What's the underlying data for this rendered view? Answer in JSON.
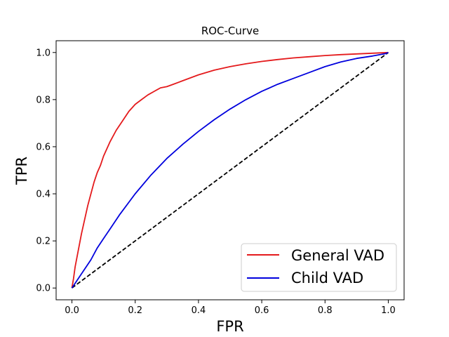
{
  "chart_data": {
    "type": "line",
    "title": "ROC-Curve",
    "xlabel": "FPR",
    "ylabel": "TPR",
    "xlim": [
      -0.05,
      1.05
    ],
    "ylim": [
      -0.05,
      1.05
    ],
    "xticks": [
      "0.0",
      "0.2",
      "0.4",
      "0.6",
      "0.8",
      "1.0"
    ],
    "yticks": [
      "0.0",
      "0.2",
      "0.4",
      "0.6",
      "0.8",
      "1.0"
    ],
    "xtick_values": [
      0.0,
      0.2,
      0.4,
      0.6,
      0.8,
      1.0
    ],
    "ytick_values": [
      0.0,
      0.2,
      0.4,
      0.6,
      0.8,
      1.0
    ],
    "grid": false,
    "legend_position": "bottom-right",
    "series": [
      {
        "name": "General VAD",
        "color": "#e41a1c",
        "x": [
          0.0,
          0.005,
          0.01,
          0.02,
          0.03,
          0.04,
          0.05,
          0.06,
          0.07,
          0.08,
          0.09,
          0.1,
          0.12,
          0.14,
          0.16,
          0.18,
          0.2,
          0.22,
          0.24,
          0.26,
          0.28,
          0.3,
          0.32,
          0.35,
          0.4,
          0.45,
          0.5,
          0.55,
          0.6,
          0.65,
          0.7,
          0.75,
          0.8,
          0.85,
          0.9,
          0.95,
          1.0
        ],
        "y": [
          0.0,
          0.04,
          0.09,
          0.16,
          0.23,
          0.29,
          0.35,
          0.4,
          0.45,
          0.49,
          0.52,
          0.56,
          0.62,
          0.67,
          0.71,
          0.75,
          0.78,
          0.8,
          0.82,
          0.835,
          0.85,
          0.855,
          0.865,
          0.88,
          0.905,
          0.925,
          0.94,
          0.952,
          0.962,
          0.97,
          0.977,
          0.982,
          0.987,
          0.991,
          0.994,
          0.997,
          1.0
        ]
      },
      {
        "name": "Child VAD",
        "color": "#0000dd",
        "x": [
          0.0,
          0.01,
          0.02,
          0.04,
          0.06,
          0.08,
          0.1,
          0.12,
          0.15,
          0.2,
          0.25,
          0.3,
          0.35,
          0.4,
          0.45,
          0.5,
          0.55,
          0.6,
          0.65,
          0.7,
          0.75,
          0.8,
          0.85,
          0.9,
          0.95,
          0.97,
          0.99,
          1.0
        ],
        "y": [
          0.0,
          0.02,
          0.04,
          0.08,
          0.12,
          0.17,
          0.21,
          0.25,
          0.31,
          0.4,
          0.48,
          0.55,
          0.61,
          0.665,
          0.715,
          0.76,
          0.8,
          0.835,
          0.865,
          0.89,
          0.915,
          0.94,
          0.96,
          0.975,
          0.985,
          0.99,
          0.995,
          1.0
        ]
      }
    ],
    "reference_line": {
      "color": "#000000",
      "x": [
        0.0,
        1.0
      ],
      "y": [
        0.0,
        1.0
      ]
    }
  }
}
